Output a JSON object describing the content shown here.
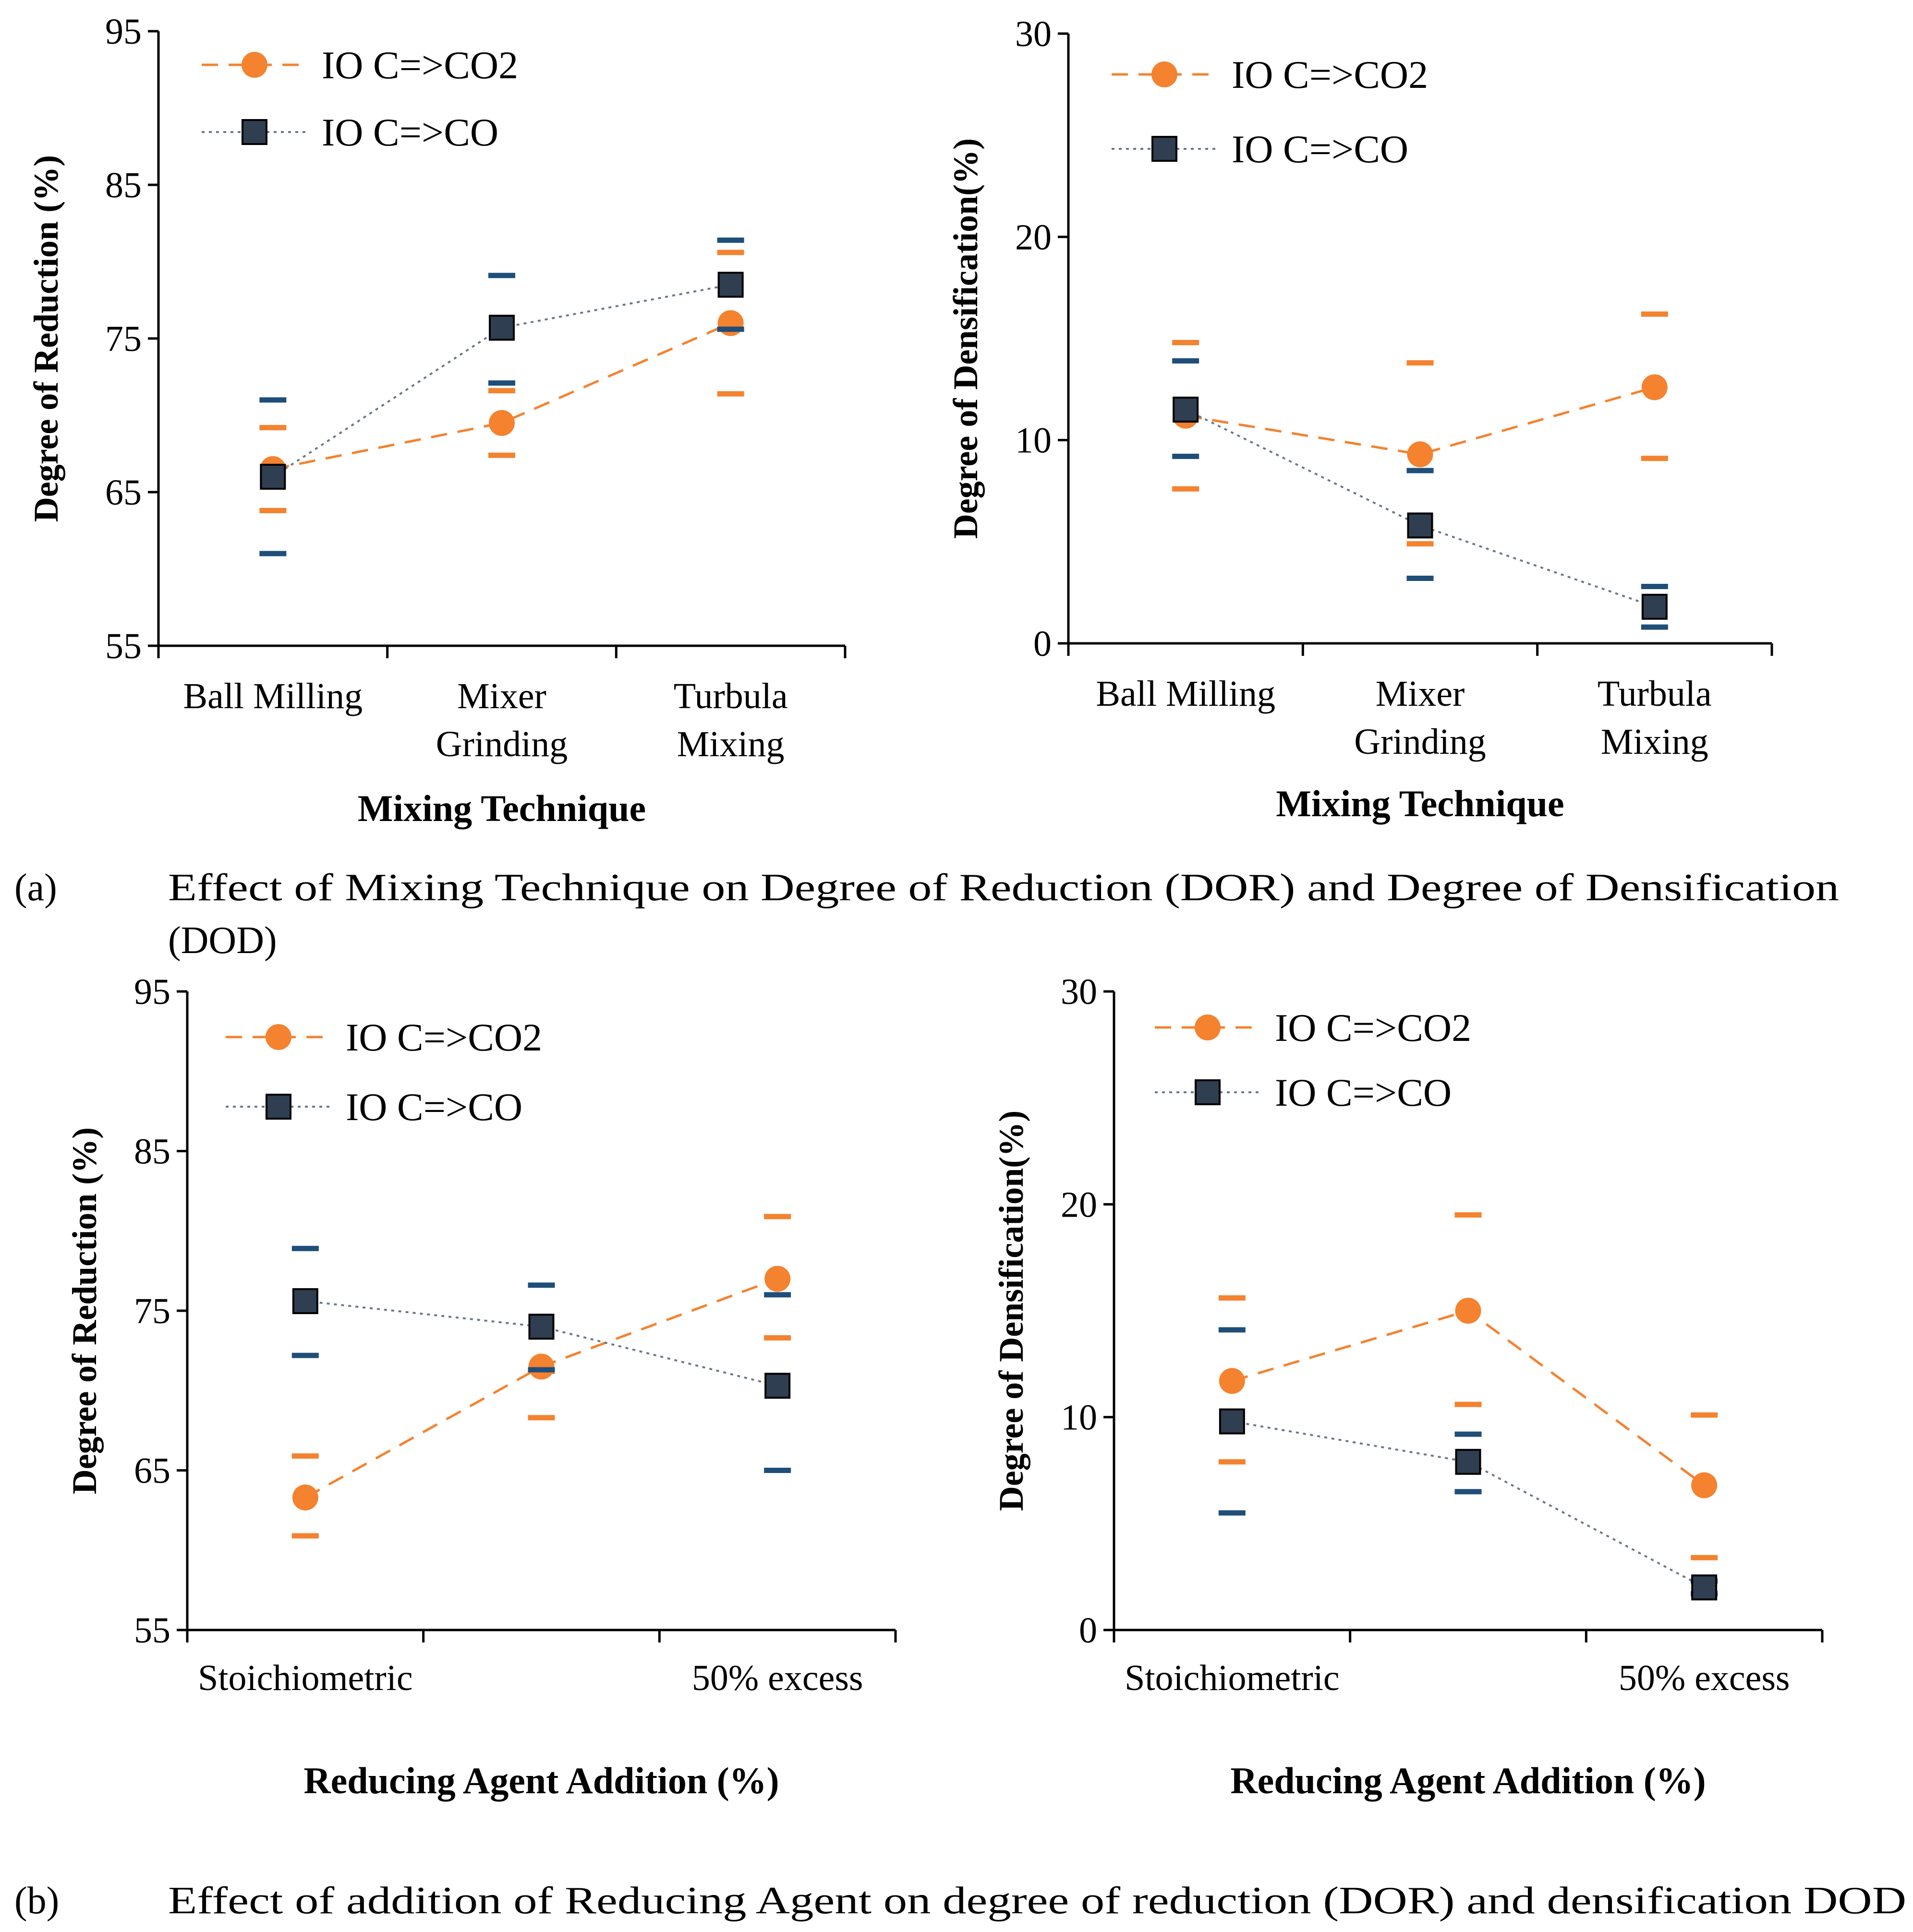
{
  "colors": {
    "co2": "#F4822F",
    "co": "#2F3E50",
    "co_err": "#1F4E79",
    "axis": "#000000"
  },
  "captions": {
    "a_label": "(a)",
    "a_text_line1": "Effect of Mixing Technique on Degree of Reduction (DOR) and Degree of Densification",
    "a_text_line2": "(DOD)",
    "b_label": "(b)",
    "b_text": "Effect of addition of Reducing Agent on degree of reduction (DOR) and densification DOD"
  },
  "chart_data": [
    {
      "type": "line",
      "panel": "a-left",
      "title": "",
      "xlabel": "Mixing Technique",
      "ylabel": "Degree of Reduction (%)",
      "ylim": [
        55,
        95
      ],
      "yticks": [
        55,
        65,
        75,
        85,
        95
      ],
      "categories": [
        [
          "Ball Milling"
        ],
        [
          "Mixer",
          "Grinding"
        ],
        [
          "Turbula",
          "Mixing"
        ]
      ],
      "legend": "top-left",
      "series": [
        {
          "name": "IO C=>CO2",
          "marker": "circle",
          "style": "dashed",
          "values": [
            66.5,
            69.5,
            76.0
          ],
          "err_low": [
            63.8,
            67.4,
            71.4
          ],
          "err_high": [
            69.2,
            71.6,
            80.6
          ]
        },
        {
          "name": "IO C=>CO",
          "marker": "square",
          "style": "dotted",
          "values": [
            66.0,
            75.7,
            78.5
          ],
          "err_low": [
            61.0,
            72.1,
            75.6
          ],
          "err_high": [
            71.0,
            79.1,
            81.4
          ]
        }
      ]
    },
    {
      "type": "line",
      "panel": "a-right",
      "title": "",
      "xlabel": "Mixing Technique",
      "ylabel": "Degree of Densification(%)",
      "ylim": [
        0,
        30
      ],
      "yticks": [
        0,
        10,
        20,
        30
      ],
      "categories": [
        [
          "Ball Milling"
        ],
        [
          "Mixer",
          "Grinding"
        ],
        [
          "Turbula",
          "Mixing"
        ]
      ],
      "legend": "top-left",
      "series": [
        {
          "name": "IO C=>CO2",
          "marker": "circle",
          "style": "dashed",
          "values": [
            11.2,
            9.3,
            12.6
          ],
          "err_low": [
            7.6,
            4.9,
            9.1
          ],
          "err_high": [
            14.8,
            13.8,
            16.2
          ]
        },
        {
          "name": "IO C=>CO",
          "marker": "square",
          "style": "dotted",
          "values": [
            11.5,
            5.8,
            1.8
          ],
          "err_low": [
            9.2,
            3.2,
            0.8
          ],
          "err_high": [
            13.9,
            8.5,
            2.8
          ]
        }
      ]
    },
    {
      "type": "line",
      "panel": "b-left",
      "title": "",
      "xlabel": "Reducing Agent Addition (%)",
      "ylabel": "Degree of Reduction (%)",
      "ylim": [
        55,
        95
      ],
      "yticks": [
        55,
        65,
        75,
        85,
        95
      ],
      "categories": [
        [
          "Stoichiometric"
        ],
        [
          ""
        ],
        [
          "50% excess"
        ]
      ],
      "legend": "top-left",
      "series": [
        {
          "name": "IO C=>CO2",
          "marker": "circle",
          "style": "dashed",
          "values": [
            63.3,
            71.5,
            77.0
          ],
          "err_low": [
            60.9,
            68.3,
            73.3
          ],
          "err_high": [
            65.9,
            71.2,
            80.9
          ]
        },
        {
          "name": "IO C=>CO",
          "marker": "square",
          "style": "dotted",
          "values": [
            75.6,
            74.0,
            70.3
          ],
          "err_low": [
            72.2,
            71.3,
            65.0
          ],
          "err_high": [
            78.9,
            76.6,
            76.0
          ]
        }
      ]
    },
    {
      "type": "line",
      "panel": "b-right",
      "title": "",
      "xlabel": "Reducing Agent Addition (%)",
      "ylabel": "Degree of Densification(%)",
      "ylim": [
        0,
        30
      ],
      "yticks": [
        0,
        10,
        20,
        30
      ],
      "categories": [
        [
          "Stoichiometric"
        ],
        [
          ""
        ],
        [
          "50% excess"
        ]
      ],
      "legend": "top-left",
      "series": [
        {
          "name": "IO C=>CO2",
          "marker": "circle",
          "style": "dashed",
          "values": [
            11.7,
            15.0,
            6.8
          ],
          "err_low": [
            7.9,
            10.6,
            3.4
          ],
          "err_high": [
            15.6,
            19.5,
            10.1
          ]
        },
        {
          "name": "IO C=>CO",
          "marker": "square",
          "style": "dotted",
          "values": [
            9.8,
            7.9,
            2.0
          ],
          "err_low": [
            5.5,
            6.5,
            1.7
          ],
          "err_high": [
            14.1,
            9.2,
            2.3
          ]
        }
      ]
    }
  ]
}
